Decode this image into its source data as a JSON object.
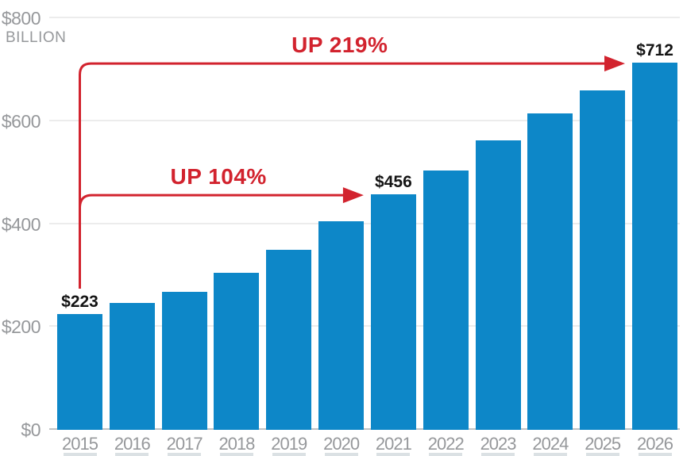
{
  "chart_data": {
    "type": "bar",
    "title": "",
    "categories": [
      "2015",
      "2016",
      "2017",
      "2018",
      "2019",
      "2020",
      "2021",
      "2022",
      "2023",
      "2024",
      "2025",
      "2026"
    ],
    "values": [
      223,
      245,
      267,
      304,
      348,
      404,
      456,
      503,
      561,
      613,
      658,
      712
    ],
    "xlabel": "",
    "ylabel": "",
    "y_unit_label": "BILLION",
    "y_ticks": [
      {
        "value": 0,
        "label": "$0"
      },
      {
        "value": 200,
        "label": "$200"
      },
      {
        "value": 400,
        "label": "$400"
      },
      {
        "value": 600,
        "label": "$600"
      },
      {
        "value": 800,
        "label": "$800"
      }
    ],
    "ylim": [
      0,
      800
    ],
    "grid": true,
    "legend_position": "none",
    "bar_color": "#0d87c8",
    "accent_color": "#d2232e",
    "axis_text_color": "#96989b",
    "value_labels": [
      {
        "index": 0,
        "label": "$223"
      },
      {
        "index": 6,
        "label": "$456"
      },
      {
        "index": 11,
        "label": "$712"
      }
    ],
    "annotations": [
      {
        "label": "UP 104%",
        "from_index": 0,
        "to_index": 6
      },
      {
        "label": "UP 219%",
        "from_index": 0,
        "to_index": 11
      }
    ]
  }
}
